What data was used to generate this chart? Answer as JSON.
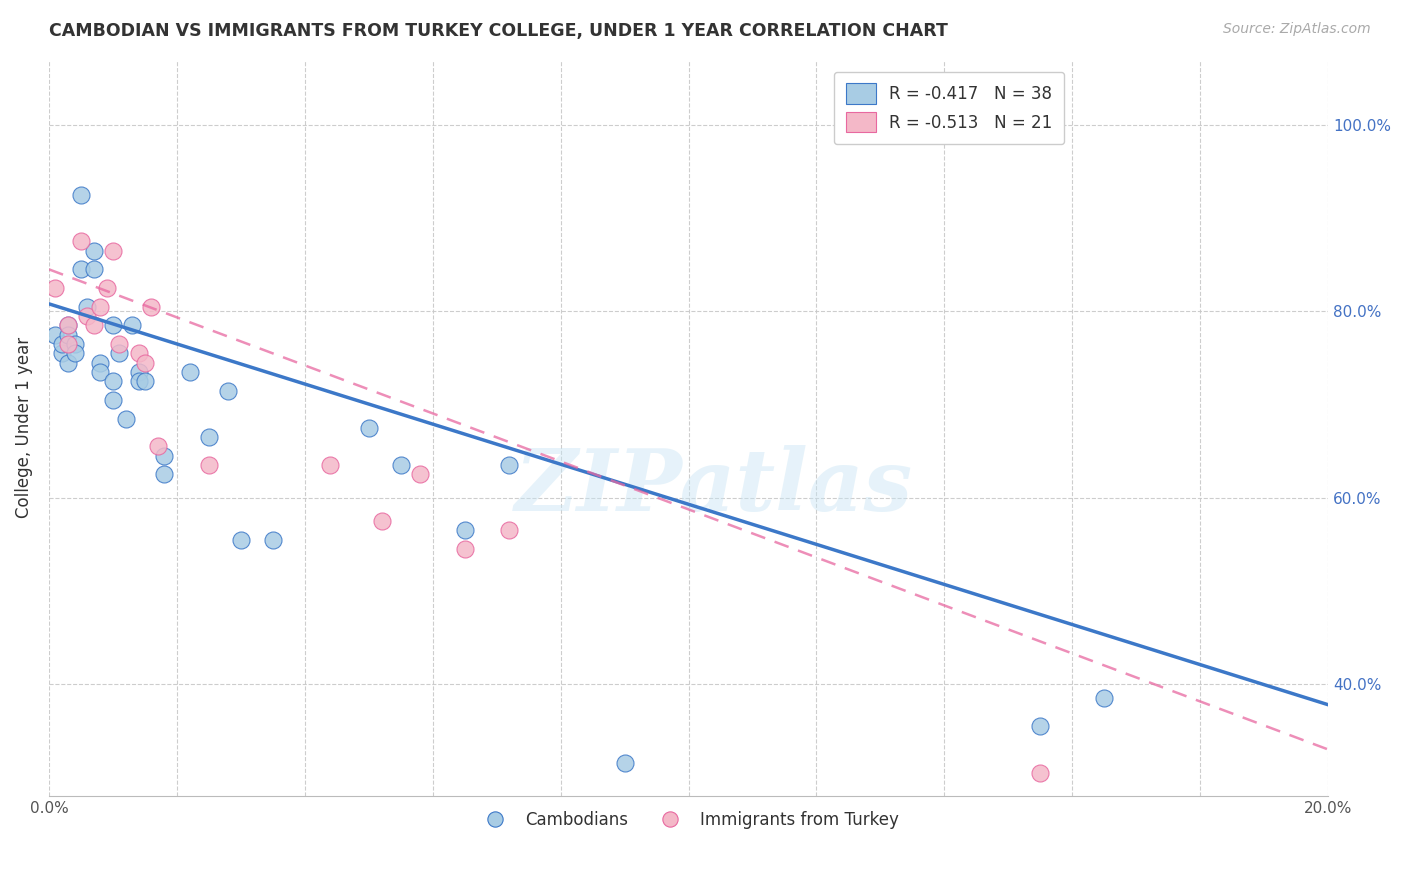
{
  "title": "CAMBODIAN VS IMMIGRANTS FROM TURKEY COLLEGE, UNDER 1 YEAR CORRELATION CHART",
  "source": "Source: ZipAtlas.com",
  "xlabel": "",
  "ylabel": "College, Under 1 year",
  "xlim": [
    0.0,
    0.2
  ],
  "ylim": [
    0.28,
    1.07
  ],
  "xticks": [
    0.0,
    0.02,
    0.04,
    0.06,
    0.08,
    0.1,
    0.12,
    0.14,
    0.16,
    0.18,
    0.2
  ],
  "yticks": [
    0.4,
    0.6,
    0.8,
    1.0
  ],
  "xticklabels": [
    "0.0%",
    "",
    "",
    "",
    "",
    "",
    "",
    "",
    "",
    "",
    "20.0%"
  ],
  "yticklabels_right": [
    "40.0%",
    "60.0%",
    "80.0%",
    "100.0%"
  ],
  "watermark": "ZIPatlas",
  "legend_blue_label": "R = -0.417   N = 38",
  "legend_pink_label": "R = -0.513   N = 21",
  "legend_bottom_blue": "Cambodians",
  "legend_bottom_pink": "Immigrants from Turkey",
  "blue_color": "#a8cce4",
  "pink_color": "#f4b8c8",
  "blue_line_color": "#3c78c8",
  "pink_line_color": "#e868a0",
  "cambodian_x": [
    0.001,
    0.002,
    0.002,
    0.003,
    0.003,
    0.003,
    0.004,
    0.004,
    0.005,
    0.005,
    0.006,
    0.007,
    0.007,
    0.008,
    0.008,
    0.01,
    0.01,
    0.01,
    0.011,
    0.012,
    0.013,
    0.014,
    0.014,
    0.015,
    0.018,
    0.018,
    0.022,
    0.025,
    0.028,
    0.03,
    0.035,
    0.05,
    0.055,
    0.065,
    0.072,
    0.09,
    0.155,
    0.165
  ],
  "cambodian_y": [
    0.775,
    0.755,
    0.765,
    0.785,
    0.775,
    0.745,
    0.765,
    0.755,
    0.925,
    0.845,
    0.805,
    0.865,
    0.845,
    0.745,
    0.735,
    0.785,
    0.725,
    0.705,
    0.755,
    0.685,
    0.785,
    0.735,
    0.725,
    0.725,
    0.645,
    0.625,
    0.735,
    0.665,
    0.715,
    0.555,
    0.555,
    0.675,
    0.635,
    0.565,
    0.635,
    0.315,
    0.355,
    0.385
  ],
  "turkey_x": [
    0.001,
    0.003,
    0.003,
    0.005,
    0.006,
    0.007,
    0.008,
    0.009,
    0.01,
    0.011,
    0.014,
    0.015,
    0.016,
    0.017,
    0.025,
    0.044,
    0.052,
    0.058,
    0.065,
    0.072,
    0.155
  ],
  "turkey_y": [
    0.825,
    0.785,
    0.765,
    0.875,
    0.795,
    0.785,
    0.805,
    0.825,
    0.865,
    0.765,
    0.755,
    0.745,
    0.805,
    0.655,
    0.635,
    0.635,
    0.575,
    0.625,
    0.545,
    0.565,
    0.305
  ],
  "blue_trendline_x": [
    0.0,
    0.2
  ],
  "blue_trendline_y": [
    0.808,
    0.378
  ],
  "pink_trendline_x": [
    0.0,
    0.2
  ],
  "pink_trendline_y": [
    0.845,
    0.33
  ],
  "background_color": "#ffffff",
  "grid_color": "#c8c8c8"
}
